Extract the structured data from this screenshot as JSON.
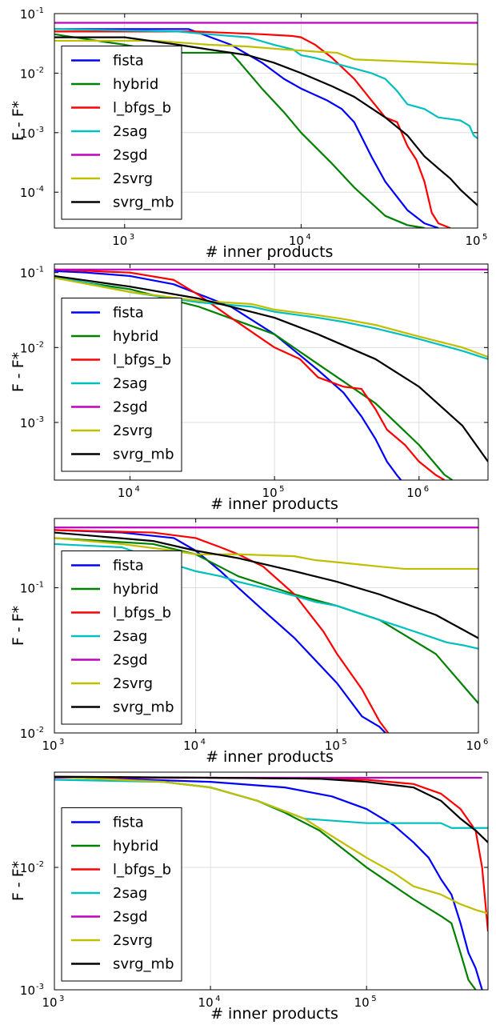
{
  "chart_data": [
    {
      "type": "line",
      "xlabel": "# inner products",
      "ylabel": "F - F*",
      "xscale": "log",
      "yscale": "log",
      "xlim": [
        400,
        100000
      ],
      "ylim": [
        2.5e-05,
        0.1
      ],
      "xticks": [
        1000,
        10000,
        100000
      ],
      "xticklabels": [
        [
          "10",
          "3"
        ],
        [
          "10",
          "4"
        ],
        [
          "10",
          "5"
        ]
      ],
      "yticks": [
        0.0001,
        0.001,
        0.01,
        0.1
      ],
      "yticklabels": [
        [
          "10",
          "-4"
        ],
        [
          "10",
          "-3"
        ],
        [
          "10",
          "-2"
        ],
        [
          "10",
          "-1"
        ]
      ],
      "grid": true,
      "legend": "lower-left",
      "series": [
        {
          "name": "fista",
          "color": "#0000ff",
          "x": [
            400,
            2300,
            4000,
            6000,
            8000,
            10000,
            14000,
            17000,
            20000,
            25000,
            30000,
            40000,
            50000,
            60000
          ],
          "y": [
            0.055,
            0.055,
            0.03,
            0.015,
            0.008,
            0.0055,
            0.0035,
            0.0025,
            0.0015,
            0.0004,
            0.00015,
            5e-05,
            3e-05,
            2.5e-05
          ]
        },
        {
          "name": "hybrid",
          "color": "#008000",
          "x": [
            400,
            700,
            1000,
            1400,
            2000,
            2800,
            4000,
            4500,
            6000,
            8000,
            10000,
            15000,
            20000,
            30000,
            40000,
            50000
          ],
          "y": [
            0.045,
            0.035,
            0.03,
            0.025,
            0.022,
            0.022,
            0.022,
            0.015,
            0.0055,
            0.0022,
            0.001,
            0.0003,
            0.00012,
            4e-05,
            2.8e-05,
            2.5e-05
          ]
        },
        {
          "name": "l_bfgs_b",
          "color": "#ff0000",
          "x": [
            400,
            2500,
            6000,
            9000,
            10000,
            12000,
            15000,
            20000,
            25000,
            30000,
            35000,
            40000,
            45000,
            50000,
            55000,
            60000,
            70000
          ],
          "y": [
            0.05,
            0.05,
            0.045,
            0.042,
            0.04,
            0.03,
            0.018,
            0.008,
            0.0035,
            0.0018,
            0.0015,
            0.0006,
            0.00035,
            0.00015,
            4.5e-05,
            3e-05,
            2.5e-05
          ]
        },
        {
          "name": "2sag",
          "color": "#00bfbf",
          "x": [
            400,
            2000,
            3000,
            5000,
            7000,
            9000,
            10000,
            12000,
            15000,
            20000,
            25000,
            30000,
            35000,
            40000,
            50000,
            60000,
            70000,
            80000,
            90000,
            95000,
            100000
          ],
          "y": [
            0.055,
            0.05,
            0.045,
            0.04,
            0.03,
            0.025,
            0.02,
            0.018,
            0.015,
            0.012,
            0.01,
            0.008,
            0.005,
            0.003,
            0.0025,
            0.0018,
            0.0017,
            0.0016,
            0.0013,
            0.0009,
            0.0008
          ]
        },
        {
          "name": "2sgd",
          "color": "#bf00bf",
          "x": [
            400,
            100000
          ],
          "y": [
            0.07,
            0.07
          ]
        },
        {
          "name": "2svrg",
          "color": "#bfbf00",
          "x": [
            400,
            1500,
            3000,
            5000,
            8000,
            10000,
            12000,
            16000,
            20000,
            100000
          ],
          "y": [
            0.035,
            0.035,
            0.03,
            0.028,
            0.025,
            0.024,
            0.023,
            0.022,
            0.017,
            0.014
          ]
        },
        {
          "name": "svrg_mb",
          "color": "#000000",
          "x": [
            400,
            1000,
            2000,
            3000,
            5000,
            7000,
            10000,
            15000,
            20000,
            30000,
            40000,
            50000,
            60000,
            70000,
            80000,
            100000
          ],
          "y": [
            0.04,
            0.04,
            0.03,
            0.025,
            0.02,
            0.015,
            0.01,
            0.006,
            0.004,
            0.0018,
            0.0009,
            0.0004,
            0.00025,
            0.00017,
            0.00011,
            6e-05
          ]
        }
      ]
    },
    {
      "type": "line",
      "xlabel": "# inner products",
      "ylabel": "F - F*",
      "xscale": "log",
      "yscale": "log",
      "xlim": [
        3000,
        3000000
      ],
      "ylim": [
        0.00017,
        0.13
      ],
      "xticks": [
        10000,
        100000,
        1000000
      ],
      "xticklabels": [
        [
          "10",
          "4"
        ],
        [
          "10",
          "5"
        ],
        [
          "10",
          "6"
        ]
      ],
      "yticks": [
        0.001,
        0.01,
        0.1
      ],
      "yticklabels": [
        [
          "10",
          "-3"
        ],
        [
          "10",
          "-2"
        ],
        [
          "10",
          "-1"
        ]
      ],
      "grid": true,
      "legend": "lower-left",
      "series": [
        {
          "name": "fista",
          "color": "#0000ff",
          "x": [
            3000,
            5000,
            10000,
            20000,
            50000,
            100000,
            200000,
            300000,
            400000,
            500000,
            600000,
            700000,
            750000
          ],
          "y": [
            0.105,
            0.1,
            0.09,
            0.07,
            0.035,
            0.015,
            0.005,
            0.0025,
            0.0012,
            0.0006,
            0.0003,
            0.0002,
            0.00017
          ]
        },
        {
          "name": "hybrid",
          "color": "#008000",
          "x": [
            3000,
            10000,
            30000,
            100000,
            200000,
            500000,
            1000000,
            1500000,
            1700000
          ],
          "y": [
            0.085,
            0.06,
            0.035,
            0.015,
            0.006,
            0.0018,
            0.0005,
            0.0002,
            0.00017
          ]
        },
        {
          "name": "l_bfgs_b",
          "color": "#ff0000",
          "x": [
            3000,
            10000,
            20000,
            30000,
            50000,
            100000,
            150000,
            200000,
            300000,
            400000,
            500000,
            600000,
            800000,
            1000000,
            1300000,
            1500000
          ],
          "y": [
            0.11,
            0.1,
            0.08,
            0.05,
            0.025,
            0.01,
            0.007,
            0.004,
            0.003,
            0.0028,
            0.0015,
            0.0008,
            0.0005,
            0.0003,
            0.0002,
            0.00017
          ]
        },
        {
          "name": "2sag",
          "color": "#00bfbf",
          "x": [
            3000,
            10000,
            30000,
            70000,
            100000,
            200000,
            300000,
            500000,
            1000000,
            2000000,
            3000000
          ],
          "y": [
            0.09,
            0.055,
            0.04,
            0.035,
            0.03,
            0.025,
            0.022,
            0.018,
            0.013,
            0.009,
            0.007
          ]
        },
        {
          "name": "2sgd",
          "color": "#bf00bf",
          "x": [
            3000,
            3000000
          ],
          "y": [
            0.11,
            0.11
          ]
        },
        {
          "name": "2svrg",
          "color": "#bfbf00",
          "x": [
            3000,
            10000,
            30000,
            70000,
            100000,
            200000,
            300000,
            500000,
            1000000,
            2000000,
            3000000
          ],
          "y": [
            0.085,
            0.055,
            0.042,
            0.038,
            0.032,
            0.027,
            0.024,
            0.02,
            0.014,
            0.01,
            0.0075
          ]
        },
        {
          "name": "svrg_mb",
          "color": "#000000",
          "x": [
            3000,
            10000,
            30000,
            100000,
            200000,
            500000,
            1000000,
            2000000,
            3000000
          ],
          "y": [
            0.09,
            0.065,
            0.045,
            0.025,
            0.015,
            0.007,
            0.003,
            0.0009,
            0.0003
          ]
        }
      ]
    },
    {
      "type": "line",
      "xlabel": "# inner products",
      "ylabel": "F - F*",
      "xscale": "log",
      "yscale": "log",
      "xlim": [
        1000,
        1000000
      ],
      "ylim": [
        0.01,
        0.3
      ],
      "xticks": [
        1000,
        10000,
        100000,
        1000000
      ],
      "xticklabels": [
        [
          "10",
          "3"
        ],
        [
          "10",
          "4"
        ],
        [
          "10",
          "5"
        ],
        [
          "10",
          "6"
        ]
      ],
      "yticks": [
        0.01,
        0.1
      ],
      "yticklabels": [
        [
          "10",
          "-2"
        ],
        [
          "10",
          "-1"
        ]
      ],
      "grid": true,
      "legend": "lower-left",
      "series": [
        {
          "name": "fista",
          "color": "#0000ff",
          "x": [
            1000,
            3000,
            7000,
            10000,
            15000,
            20000,
            30000,
            50000,
            100000,
            150000,
            200000,
            220000
          ],
          "y": [
            0.25,
            0.24,
            0.22,
            0.18,
            0.13,
            0.1,
            0.07,
            0.045,
            0.022,
            0.013,
            0.011,
            0.01
          ]
        },
        {
          "name": "hybrid",
          "color": "#008000",
          "x": [
            1000,
            5000,
            10000,
            20000,
            50000,
            100000,
            200000,
            500000,
            1000000
          ],
          "y": [
            0.22,
            0.2,
            0.17,
            0.12,
            0.09,
            0.075,
            0.06,
            0.035,
            0.016
          ]
        },
        {
          "name": "l_bfgs_b",
          "color": "#ff0000",
          "x": [
            1000,
            5000,
            10000,
            15000,
            20000,
            30000,
            50000,
            80000,
            100000,
            150000,
            200000,
            230000
          ],
          "y": [
            0.25,
            0.24,
            0.22,
            0.19,
            0.17,
            0.14,
            0.09,
            0.05,
            0.035,
            0.02,
            0.012,
            0.01
          ]
        },
        {
          "name": "2sag",
          "color": "#00bfbf",
          "x": [
            1000,
            3000,
            5000,
            10000,
            15000,
            20000,
            30000,
            50000,
            70000,
            100000,
            200000,
            400000,
            600000,
            800000,
            1000000
          ],
          "y": [
            0.2,
            0.19,
            0.16,
            0.13,
            0.12,
            0.11,
            0.1,
            0.088,
            0.08,
            0.075,
            0.06,
            0.048,
            0.042,
            0.04,
            0.038
          ]
        },
        {
          "name": "2sgd",
          "color": "#bf00bf",
          "x": [
            1000,
            1000000
          ],
          "y": [
            0.26,
            0.26
          ]
        },
        {
          "name": "2svrg",
          "color": "#bfbf00",
          "x": [
            1000,
            3000,
            7000,
            10000,
            20000,
            50000,
            70000,
            100000,
            200000,
            300000,
            1000000
          ],
          "y": [
            0.22,
            0.2,
            0.18,
            0.17,
            0.17,
            0.165,
            0.155,
            0.15,
            0.14,
            0.135,
            0.135
          ]
        },
        {
          "name": "svrg_mb",
          "color": "#000000",
          "x": [
            1000,
            5000,
            10000,
            20000,
            50000,
            100000,
            200000,
            500000,
            1000000
          ],
          "y": [
            0.24,
            0.21,
            0.18,
            0.16,
            0.13,
            0.11,
            0.09,
            0.065,
            0.045
          ]
        }
      ]
    },
    {
      "type": "line",
      "xlabel": "# inner products",
      "ylabel": "F - F*",
      "xscale": "log",
      "yscale": "log",
      "xlim": [
        1000,
        600000
      ],
      "ylim": [
        0.001,
        0.06
      ],
      "xticks": [
        1000,
        10000,
        100000
      ],
      "xticklabels": [
        [
          "10",
          "3"
        ],
        [
          "10",
          "4"
        ],
        [
          "10",
          "5"
        ]
      ],
      "yticks": [
        0.001,
        0.01
      ],
      "yticklabels": [
        [
          "10",
          "-3"
        ],
        [
          "10",
          "-2"
        ]
      ],
      "grid": true,
      "legend": "lower-left",
      "series": [
        {
          "name": "fista",
          "color": "#0000ff",
          "x": [
            1000,
            10000,
            30000,
            60000,
            100000,
            150000,
            200000,
            250000,
            300000,
            350000,
            400000,
            450000,
            500000,
            550000
          ],
          "y": [
            0.055,
            0.05,
            0.045,
            0.038,
            0.03,
            0.022,
            0.016,
            0.012,
            0.008,
            0.006,
            0.0035,
            0.002,
            0.0015,
            0.001
          ]
        },
        {
          "name": "hybrid",
          "color": "#008000",
          "x": [
            1000,
            5000,
            10000,
            20000,
            30000,
            50000,
            100000,
            200000,
            300000,
            350000,
            400000,
            450000,
            500000
          ],
          "y": [
            0.055,
            0.05,
            0.045,
            0.035,
            0.028,
            0.02,
            0.01,
            0.0055,
            0.004,
            0.0035,
            0.002,
            0.0012,
            0.001
          ]
        },
        {
          "name": "l_bfgs_b",
          "color": "#ff0000",
          "x": [
            1000,
            10000,
            50000,
            100000,
            200000,
            300000,
            400000,
            500000,
            550000,
            600000
          ],
          "y": [
            0.055,
            0.054,
            0.053,
            0.052,
            0.048,
            0.04,
            0.03,
            0.02,
            0.01,
            0.003
          ]
        },
        {
          "name": "2sag",
          "color": "#00bfbf",
          "x": [
            1000,
            5000,
            10000,
            20000,
            40000,
            100000,
            200000,
            300000,
            350000,
            600000
          ],
          "y": [
            0.052,
            0.05,
            0.045,
            0.035,
            0.025,
            0.023,
            0.023,
            0.023,
            0.021,
            0.021
          ]
        },
        {
          "name": "2sgd",
          "color": "#bf00bf",
          "x": [
            1000,
            550000
          ],
          "y": [
            0.054,
            0.054
          ]
        },
        {
          "name": "2svrg",
          "color": "#bfbf00",
          "x": [
            1000,
            5000,
            10000,
            20000,
            40000,
            60000,
            100000,
            150000,
            200000,
            300000,
            400000,
            500000,
            600000
          ],
          "y": [
            0.055,
            0.05,
            0.045,
            0.035,
            0.025,
            0.018,
            0.012,
            0.009,
            0.007,
            0.006,
            0.005,
            0.0045,
            0.0042
          ]
        },
        {
          "name": "svrg_mb",
          "color": "#000000",
          "x": [
            1000,
            10000,
            50000,
            100000,
            200000,
            300000,
            400000,
            500000,
            600000
          ],
          "y": [
            0.055,
            0.054,
            0.053,
            0.05,
            0.045,
            0.035,
            0.025,
            0.02,
            0.016
          ]
        }
      ]
    }
  ]
}
